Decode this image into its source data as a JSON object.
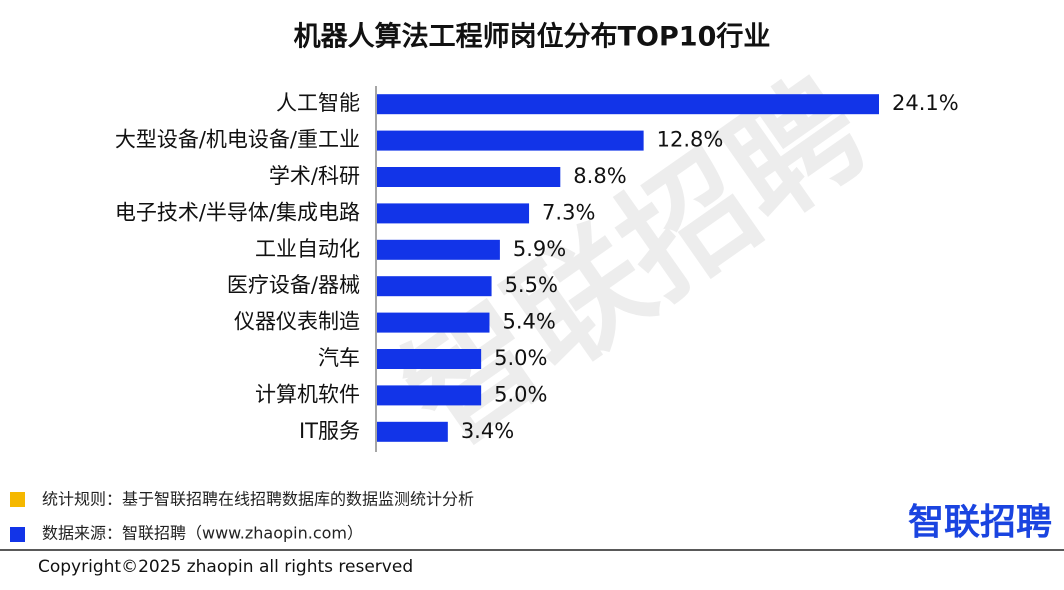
{
  "chart_data": {
    "type": "bar",
    "orientation": "horizontal",
    "title": "机器人算法工程师岗位分布TOP10行业",
    "categories": [
      "人工智能",
      "大型设备/机电设备/重工业",
      "学术/科研",
      "电子技术/半导体/集成电路",
      "工业自动化",
      "医疗设备/器械",
      "仪器仪表制造",
      "汽车",
      "计算机软件",
      "IT服务"
    ],
    "values": [
      24.1,
      12.8,
      8.8,
      7.3,
      5.9,
      5.5,
      5.4,
      5.0,
      5.0,
      3.4
    ],
    "value_labels": [
      "24.1%",
      "12.8%",
      "8.8%",
      "7.3%",
      "5.9%",
      "5.5%",
      "5.4%",
      "5.0%",
      "5.0%",
      "3.4%"
    ],
    "color": "#1234e8"
  },
  "watermark": "智联招聘",
  "notes": [
    "统计规则：基于智联招聘在线招聘数据库的数据监测统计分析",
    "数据来源：智联招聘（www.zhaopin.com）"
  ],
  "logo": "智联招聘",
  "copyright": "Copyright©2025 zhaopin all rights reserved"
}
